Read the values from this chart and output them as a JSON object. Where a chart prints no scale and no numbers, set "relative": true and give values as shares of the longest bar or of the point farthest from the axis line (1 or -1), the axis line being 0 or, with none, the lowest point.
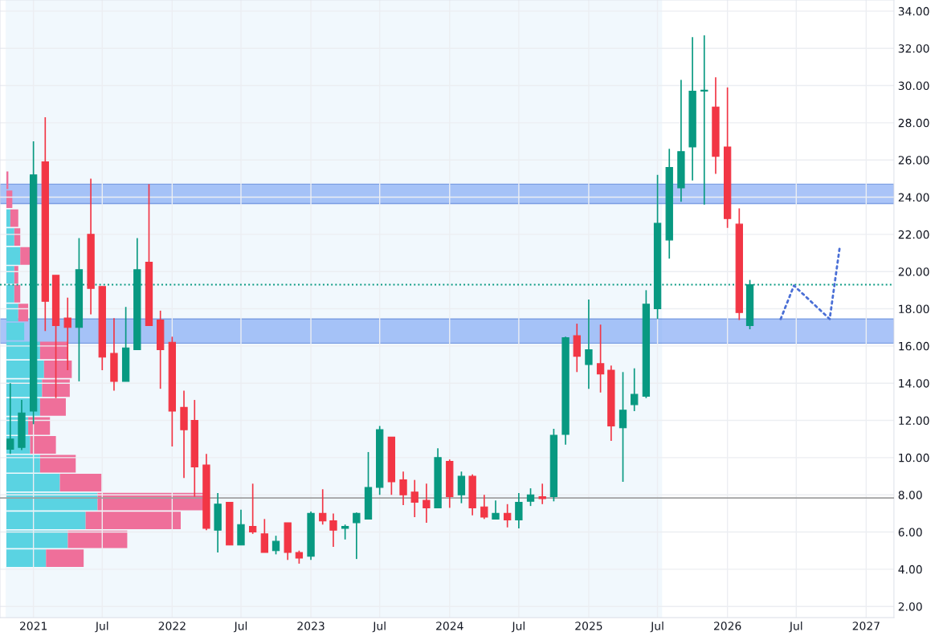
{
  "chart_data": [
    {
      "type": "candlestick",
      "x": [
        "2020-11",
        "2020-12",
        "2021-01",
        "2021-02",
        "2021-03",
        "2021-04",
        "2021-05",
        "2021-06",
        "2021-07",
        "2021-08",
        "2021-09",
        "2021-10",
        "2021-11",
        "2021-12",
        "2022-01",
        "2022-02",
        "2022-03",
        "2022-04",
        "2022-05",
        "2022-06",
        "2022-07",
        "2022-08",
        "2022-09",
        "2022-10",
        "2022-11",
        "2022-12",
        "2023-01",
        "2023-02",
        "2023-03",
        "2023-04",
        "2023-05",
        "2023-06",
        "2023-07",
        "2023-08",
        "2023-09",
        "2023-10",
        "2023-11",
        "2023-12",
        "2024-01",
        "2024-02",
        "2024-03",
        "2024-04",
        "2024-05",
        "2024-06",
        "2024-07",
        "2024-08",
        "2024-09",
        "2024-10",
        "2024-11",
        "2024-12",
        "2025-01",
        "2025-02",
        "2025-03",
        "2025-04",
        "2025-05",
        "2025-06",
        "2025-07",
        "2025-08",
        "2025-09",
        "2025-10",
        "2025-11",
        "2025-12",
        "2026-01",
        "2026-02",
        "2026-03"
      ],
      "ohlc": [
        [
          10.45,
          14.0,
          10.2,
          11.0
        ],
        [
          10.55,
          13.1,
          10.4,
          12.4
        ],
        [
          12.5,
          27.0,
          11.8,
          25.2
        ],
        [
          25.9,
          28.3,
          16.8,
          18.4
        ],
        [
          19.8,
          19.8,
          13.2,
          17.1
        ],
        [
          17.5,
          18.6,
          14.7,
          17.0
        ],
        [
          17.0,
          21.8,
          14.1,
          20.1
        ],
        [
          22.0,
          25.0,
          17.7,
          19.1
        ],
        [
          19.2,
          19.2,
          14.7,
          15.4
        ],
        [
          15.6,
          17.5,
          13.6,
          14.1
        ],
        [
          14.1,
          18.1,
          14.1,
          15.9
        ],
        [
          15.8,
          21.8,
          15.8,
          20.1
        ],
        [
          20.5,
          24.7,
          17.1,
          17.1
        ],
        [
          17.4,
          17.9,
          13.7,
          15.8
        ],
        [
          16.2,
          16.5,
          10.6,
          12.5
        ],
        [
          12.7,
          13.6,
          8.9,
          11.5
        ],
        [
          12.0,
          13.1,
          7.9,
          9.5
        ],
        [
          9.6,
          10.2,
          6.1,
          6.2
        ],
        [
          6.1,
          8.1,
          4.9,
          7.5
        ],
        [
          7.6,
          7.6,
          5.3,
          5.3
        ],
        [
          5.3,
          7.2,
          5.3,
          6.4
        ],
        [
          6.3,
          8.6,
          5.9,
          6.0
        ],
        [
          5.9,
          6.7,
          4.9,
          4.9
        ],
        [
          5.0,
          5.8,
          4.8,
          5.5
        ],
        [
          6.5,
          6.5,
          4.5,
          4.9
        ],
        [
          4.9,
          5.0,
          4.3,
          4.6
        ],
        [
          4.7,
          7.1,
          4.5,
          7.0
        ],
        [
          7.0,
          8.3,
          6.4,
          6.6
        ],
        [
          6.6,
          7.0,
          5.2,
          6.1
        ],
        [
          6.2,
          6.4,
          5.6,
          6.3
        ],
        [
          6.5,
          7.05,
          4.55,
          7.0
        ],
        [
          6.7,
          10.3,
          6.7,
          8.4
        ],
        [
          8.4,
          11.7,
          8.0,
          11.5
        ],
        [
          11.1,
          11.1,
          8.0,
          8.7
        ],
        [
          8.8,
          9.25,
          7.45,
          8.0
        ],
        [
          8.15,
          8.8,
          6.8,
          7.6
        ],
        [
          7.7,
          8.6,
          6.5,
          7.3
        ],
        [
          7.3,
          10.5,
          7.3,
          10.0
        ],
        [
          9.8,
          9.9,
          7.3,
          7.9
        ],
        [
          8.0,
          9.25,
          7.55,
          9.0
        ],
        [
          9.0,
          9.1,
          6.9,
          7.3
        ],
        [
          7.35,
          8.0,
          6.7,
          6.8
        ],
        [
          6.7,
          7.7,
          6.7,
          7.0
        ],
        [
          7.0,
          7.5,
          6.25,
          6.65
        ],
        [
          6.65,
          8.1,
          6.2,
          7.6
        ],
        [
          7.65,
          8.35,
          7.4,
          8.0
        ],
        [
          7.9,
          8.6,
          7.5,
          7.8
        ],
        [
          7.9,
          11.55,
          7.65,
          11.2
        ],
        [
          11.25,
          16.5,
          10.7,
          16.45
        ],
        [
          16.55,
          17.2,
          14.6,
          15.45
        ],
        [
          15.0,
          18.5,
          13.7,
          15.8
        ],
        [
          15.05,
          17.15,
          13.5,
          14.5
        ],
        [
          14.7,
          14.95,
          10.9,
          11.7
        ],
        [
          11.6,
          14.6,
          8.7,
          12.55
        ],
        [
          12.85,
          14.8,
          12.5,
          13.4
        ],
        [
          13.3,
          19.0,
          13.2,
          18.25
        ],
        [
          18.0,
          25.2,
          17.45,
          22.6
        ],
        [
          21.7,
          26.6,
          20.7,
          25.6
        ],
        [
          24.5,
          30.3,
          23.75,
          26.45
        ],
        [
          26.7,
          32.6,
          24.9,
          29.7
        ],
        [
          29.7,
          32.7,
          23.6,
          29.75
        ],
        [
          28.85,
          30.45,
          25.25,
          26.2
        ],
        [
          26.7,
          29.9,
          22.35,
          22.85
        ],
        [
          22.55,
          23.4,
          17.4,
          17.8
        ],
        [
          17.1,
          19.55,
          16.9,
          19.3
        ]
      ],
      "colors": [
        "#089981",
        "#089981",
        "#089981",
        "#f23645",
        "#f23645",
        "#f23645",
        "#089981",
        "#f23645",
        "#f23645",
        "#f23645",
        "#089981",
        "#089981",
        "#f23645",
        "#f23645",
        "#f23645",
        "#f23645",
        "#f23645",
        "#f23645",
        "#089981",
        "#f23645",
        "#089981",
        "#f23645",
        "#f23645",
        "#089981",
        "#f23645",
        "#f23645",
        "#089981",
        "#f23645",
        "#f23645",
        "#089981",
        "#089981",
        "#089981",
        "#089981",
        "#f23645",
        "#f23645",
        "#f23645",
        "#f23645",
        "#089981",
        "#f23645",
        "#089981",
        "#f23645",
        "#f23645",
        "#089981",
        "#f23645",
        "#089981",
        "#089981",
        "#f23645",
        "#089981",
        "#089981",
        "#f23645",
        "#089981",
        "#f23645",
        "#f23645",
        "#089981",
        "#089981",
        "#089981",
        "#089981",
        "#089981",
        "#089981",
        "#089981",
        "#089981",
        "#f23645",
        "#f23645",
        "#f23645",
        "#089981"
      ],
      "series": [
        {
          "type": "line",
          "line_style": "dotted",
          "marker": "none",
          "color": "#4a6fd6",
          "x": [
            "2026-05-21",
            "2026-06-25",
            "2026-09-27",
            "2026-10-24"
          ],
          "values": [
            17.45,
            19.25,
            17.45,
            21.4
          ]
        }
      ],
      "ref_lines": [
        {
          "axis": "y",
          "value": 19.3,
          "color": "#089981",
          "line_style": "dotted"
        },
        {
          "axis": "y",
          "value": 7.83,
          "color": "#a0a0a0",
          "line_style": "solid"
        }
      ],
      "bands": [
        {
          "axis": "x",
          "from": "2020-10-20",
          "to": "2025-07-13",
          "color": "#e3f2fb"
        },
        {
          "axis": "y",
          "from": 23.66,
          "to": 24.7,
          "color": "#7ea6f5"
        },
        {
          "axis": "y",
          "from": 16.15,
          "to": 17.45,
          "color": "#7ea6f5"
        }
      ],
      "xlim": [
        "2020-10-05",
        "2027-03-15"
      ],
      "xticks": [
        {
          "value": "2021-01-01",
          "label": "2021"
        },
        {
          "value": "2021-07-01",
          "label": "Jul"
        },
        {
          "value": "2022-01-01",
          "label": "2022"
        },
        {
          "value": "2022-07-01",
          "label": "Jul"
        },
        {
          "value": "2023-01-01",
          "label": "2023"
        },
        {
          "value": "2023-07-01",
          "label": "Jul"
        },
        {
          "value": "2024-01-01",
          "label": "2024"
        },
        {
          "value": "2024-07-01",
          "label": "Jul"
        },
        {
          "value": "2025-01-01",
          "label": "2025"
        },
        {
          "value": "2025-07-01",
          "label": "Jul"
        },
        {
          "value": "2026-01-01",
          "label": "2026"
        },
        {
          "value": "2026-07-01",
          "label": "Jul"
        },
        {
          "value": "2027-01-01",
          "label": "2027"
        }
      ],
      "ylim": [
        1.4,
        34.6
      ],
      "yticks": [
        {
          "value": 2,
          "label": "2.00"
        },
        {
          "value": 4,
          "label": "4.00"
        },
        {
          "value": 6,
          "label": "6.00"
        },
        {
          "value": 8,
          "label": "8.00"
        },
        {
          "value": 10,
          "label": "10.00"
        },
        {
          "value": 12,
          "label": "12.00"
        },
        {
          "value": 14,
          "label": "14.00"
        },
        {
          "value": 16,
          "label": "16.00"
        },
        {
          "value": 18,
          "label": "18.00"
        },
        {
          "value": 20,
          "label": "20.00"
        },
        {
          "value": 22,
          "label": "22.00"
        },
        {
          "value": 24,
          "label": "24.00"
        },
        {
          "value": 26,
          "label": "26.00"
        },
        {
          "value": 28,
          "label": "28.00"
        },
        {
          "value": 30,
          "label": "30.00"
        },
        {
          "value": 32,
          "label": "32.00"
        },
        {
          "value": 34,
          "label": "34.00"
        }
      ],
      "grid": true
    },
    {
      "type": "bar",
      "orientation": "horizontal",
      "stacked": true,
      "relative": true,
      "categories": [
        null,
        null,
        null,
        null,
        null,
        null,
        null,
        null,
        null,
        null,
        null,
        null,
        null,
        null,
        null,
        null,
        null,
        null,
        null,
        null,
        null
      ],
      "series": [
        {
          "color": "#5ad3e2",
          "values": [
            0,
            0,
            0.02,
            0.04,
            0.07,
            0.04,
            0.04,
            0.06,
            0.09,
            0.17,
            0.19,
            0.18,
            0.17,
            0.11,
            0.12,
            0.17,
            0.27,
            0.46,
            0.4,
            0.31,
            0.2
          ]
        },
        {
          "color": "#ef6f9a",
          "values": [
            0.01,
            0.03,
            0.04,
            0.03,
            0.05,
            0.02,
            0.03,
            0.05,
            null,
            0.14,
            0.14,
            0.14,
            0.13,
            0.11,
            0.13,
            0.18,
            0.21,
            0.54,
            0.48,
            0.3,
            0.19
          ]
        }
      ]
    }
  ]
}
